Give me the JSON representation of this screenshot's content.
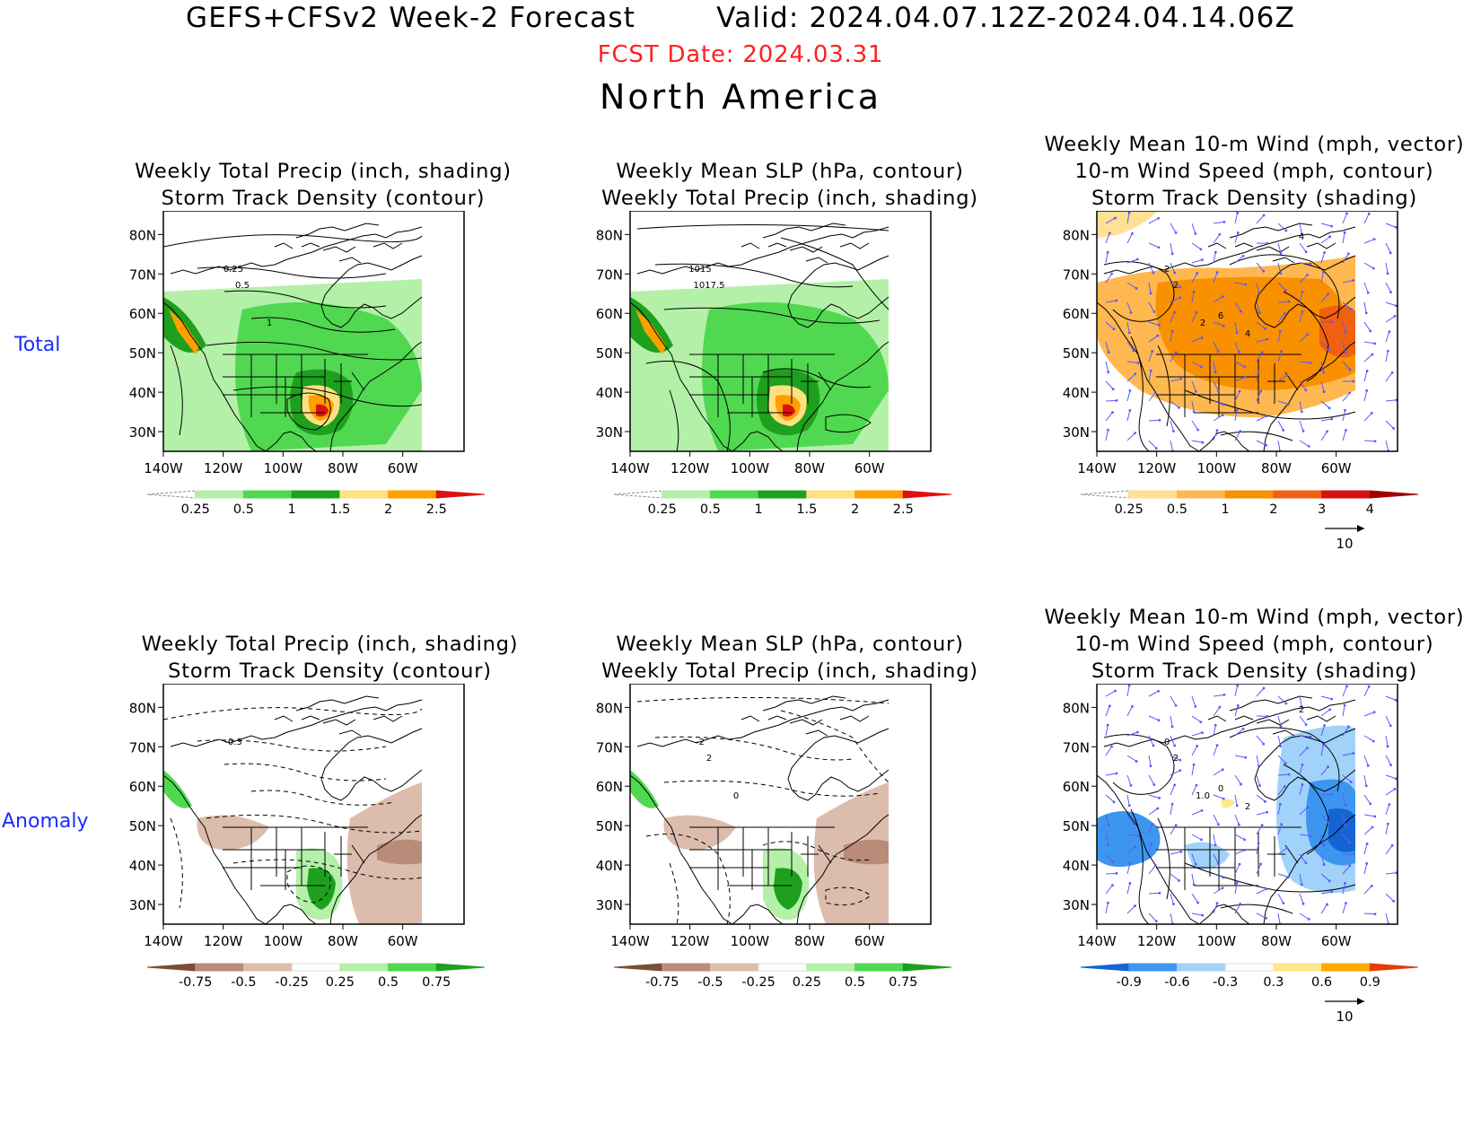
{
  "header": {
    "title": "GEFS+CFSv2 Week-2 Forecast",
    "valid": "Valid: 2024.04.07.12Z-2024.04.14.06Z",
    "fcst_date": "FCST Date: 2024.03.31",
    "region": "North America"
  },
  "rows": [
    "Total",
    "Anomaly"
  ],
  "panels": [
    {
      "title1": "",
      "title2": "Weekly Total Precip (inch, shading)",
      "title3": "Storm Track Density (contour)",
      "colorbar": [
        "0.25",
        "0.5",
        "1",
        "1.5",
        "2",
        "2.5"
      ],
      "contour_labels": [
        "0.25",
        "0.5",
        "1"
      ],
      "vector_ref": ""
    },
    {
      "title1": "",
      "title2": "Weekly Mean SLP (hPa, contour)",
      "title3": "Weekly Total Precip (inch, shading)",
      "colorbar": [
        "0.25",
        "0.5",
        "1",
        "1.5",
        "2",
        "2.5"
      ],
      "contour_labels": [
        "1015",
        "1017.5"
      ],
      "vector_ref": ""
    },
    {
      "title1": "Weekly Mean 10-m Wind (mph, vector)",
      "title2": "10-m Wind Speed (mph, contour)",
      "title3": "Storm Track Density (shading)",
      "colorbar": [
        "0.25",
        "0.5",
        "1",
        "2",
        "3",
        "4"
      ],
      "contour_labels": [
        "2",
        "2",
        "2",
        "4",
        "6",
        "4"
      ],
      "vector_ref": "10"
    },
    {
      "title1": "",
      "title2": "Weekly Total Precip (inch, shading)",
      "title3": "Storm Track Density (contour)",
      "colorbar": [
        "-0.75",
        "-0.5",
        "-0.25",
        "0.25",
        "0.5",
        "0.75"
      ],
      "contour_labels": [
        "-0.3"
      ],
      "vector_ref": ""
    },
    {
      "title1": "",
      "title2": "Weekly Mean SLP (hPa, contour)",
      "title3": "Weekly Total Precip (inch, shading)",
      "colorbar": [
        "-0.75",
        "-0.5",
        "-0.25",
        "0.25",
        "0.5",
        "0.75"
      ],
      "contour_labels": [
        "-2",
        "2",
        "0"
      ],
      "vector_ref": ""
    },
    {
      "title1": "Weekly Mean 10-m Wind (mph, vector)",
      "title2": "10-m Wind Speed (mph, contour)",
      "title3": "Storm Track Density (shading)",
      "colorbar": [
        "-0.9",
        "-0.6",
        "-0.3",
        "0.3",
        "0.6",
        "0.9"
      ],
      "contour_labels": [
        "0",
        "2",
        "1.0",
        "2",
        "0",
        "2"
      ],
      "vector_ref": "10"
    }
  ],
  "map_axes": {
    "lat_ticks": [
      "80N",
      "70N",
      "60N",
      "50N",
      "40N",
      "30N"
    ],
    "lon_ticks": [
      "140W",
      "120W",
      "100W",
      "80W",
      "60W"
    ]
  },
  "palettes": {
    "precip_total": [
      "#ffffff",
      "#b4f0a8",
      "#50d850",
      "#1ea01e",
      "#ffe080",
      "#ffa000",
      "#e01010"
    ],
    "precip_anom": [
      "#7a4e36",
      "#b88c78",
      "#dcbcac",
      "#ffffff",
      "#b4f0a8",
      "#50d850",
      "#1ea01e"
    ],
    "track_total": [
      "#ffffff",
      "#ffe094",
      "#ffb850",
      "#f89000",
      "#f06010",
      "#d81010",
      "#a00000"
    ],
    "track_anom": [
      "#1464d2",
      "#3c96f0",
      "#a0d2fa",
      "#ffffff",
      "#ffe68c",
      "#ffaa00",
      "#e63c0a"
    ]
  }
}
